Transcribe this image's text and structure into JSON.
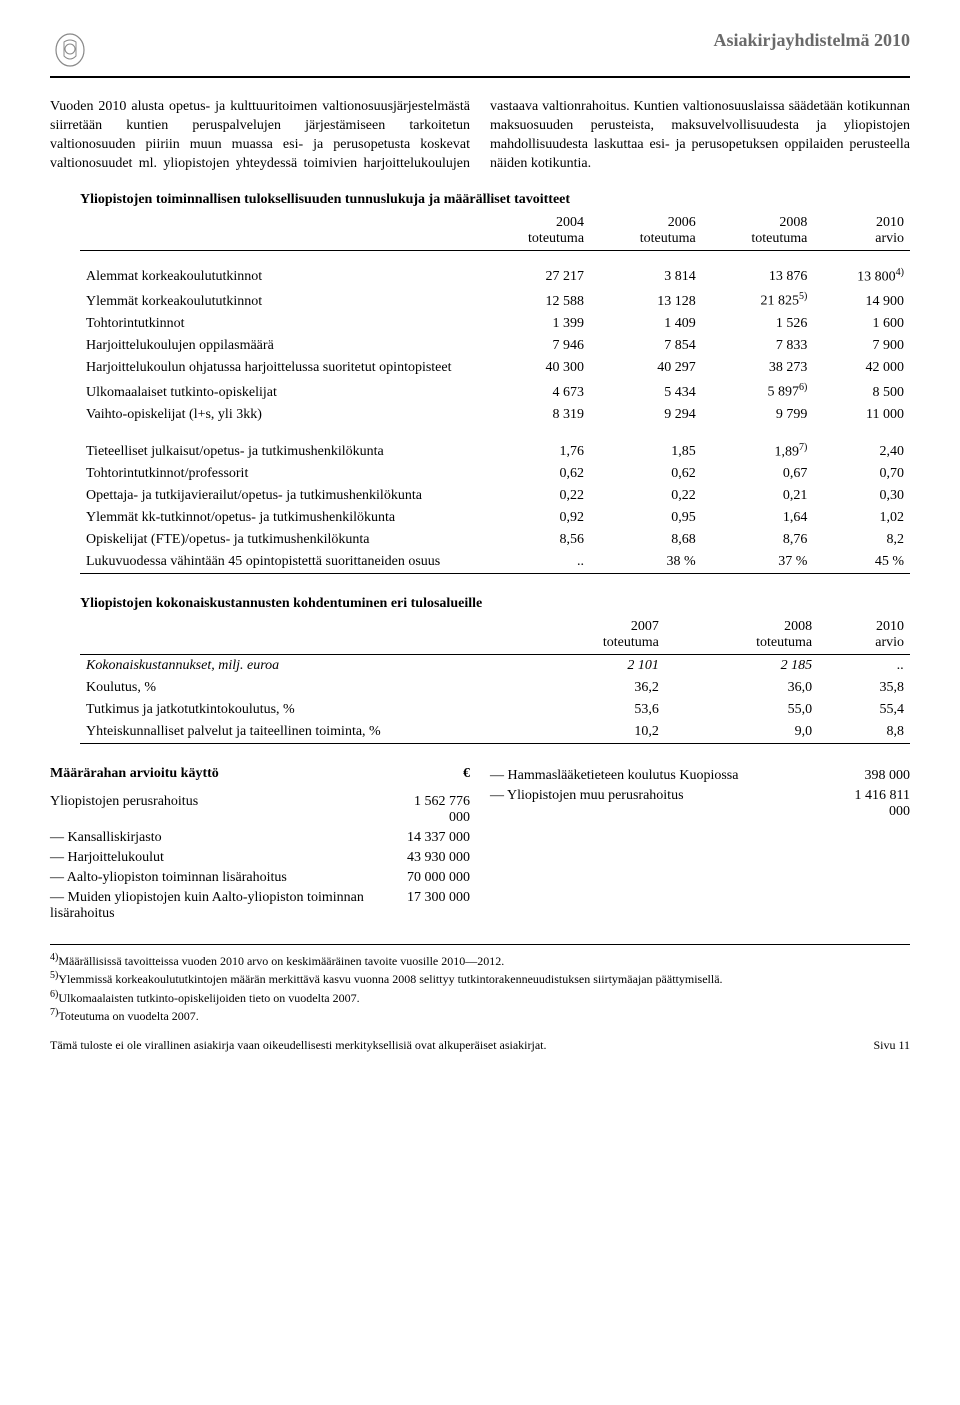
{
  "header": {
    "title": "Asiakirjayhdistelmä 2010"
  },
  "paragraph": "Vuoden 2010 alusta opetus- ja kulttuuritoimen valtionosuusjärjestelmästä siirretään kuntien peruspalvelujen järjestämiseen tarkoitetun valtionosuuden piiriin muun muassa esi- ja perusopetusta koskevat valtionosuudet ml. yliopistojen yhteydessä toimivien harjoittelukoulujen vastaava valtionrahoitus. Kuntien valtionosuuslaissa säädetään kotikunnan maksuosuuden perusteista, maksuvelvollisuudesta ja yliopistojen mahdollisuudesta laskuttaa esi- ja perusopetuksen oppilaiden perusteella näiden kotikuntia.",
  "table1": {
    "title": "Yliopistojen toiminnallisen tuloksellisuuden tunnuslukuja ja määrälliset tavoitteet",
    "headers": {
      "c1": "",
      "c2": "2004\ntoteutuma",
      "c3": "2006\ntoteutuma",
      "c4": "2008\ntoteutuma",
      "c5": "2010\narvio"
    },
    "rows_g1": [
      {
        "label": "Alemmat korkeakoulututkinnot",
        "v1": "27 217",
        "v2": "3 814",
        "v3": "13 876",
        "v4": "13 800",
        "sup4": "4)"
      },
      {
        "label": "Ylemmät korkeakoulututkinnot",
        "v1": "12 588",
        "v2": "13 128",
        "v3": "21 825",
        "sup3": "5)",
        "v4": "14 900"
      },
      {
        "label": "Tohtorintutkinnot",
        "v1": "1 399",
        "v2": "1 409",
        "v3": "1 526",
        "v4": "1 600"
      },
      {
        "label": "Harjoittelukoulujen oppilasmäärä",
        "v1": "7 946",
        "v2": "7 854",
        "v3": "7 833",
        "v4": "7 900"
      },
      {
        "label": "Harjoittelukoulun ohjatussa harjoittelussa suoritetut opintopisteet",
        "v1": "40 300",
        "v2": "40 297",
        "v3": "38 273",
        "v4": "42 000"
      },
      {
        "label": "Ulkomaalaiset tutkinto-opiskelijat",
        "v1": "4 673",
        "v2": "5 434",
        "v3": "5 897",
        "sup3": "6)",
        "v4": "8 500"
      },
      {
        "label": "Vaihto-opiskelijat (l+s, yli 3kk)",
        "v1": "8 319",
        "v2": "9 294",
        "v3": "9 799",
        "v4": "11 000"
      }
    ],
    "rows_g2": [
      {
        "label": "Tieteelliset julkaisut/opetus- ja tutkimushenkilökunta",
        "v1": "1,76",
        "v2": "1,85",
        "v3": "1,89",
        "sup3": "7)",
        "v4": "2,40"
      },
      {
        "label": "Tohtorintutkinnot/professorit",
        "v1": "0,62",
        "v2": "0,62",
        "v3": "0,67",
        "v4": "0,70"
      },
      {
        "label": "Opettaja- ja tutkijavierailut/opetus- ja tutkimushenkilökunta",
        "v1": "0,22",
        "v2": "0,22",
        "v3": "0,21",
        "v4": "0,30"
      },
      {
        "label": "Ylemmät kk-tutkinnot/opetus- ja tutkimushenkilökunta",
        "v1": "0,92",
        "v2": "0,95",
        "v3": "1,64",
        "v4": "1,02"
      },
      {
        "label": "Opiskelijat (FTE)/opetus- ja tutkimushenkilökunta",
        "v1": "8,56",
        "v2": "8,68",
        "v3": "8,76",
        "v4": "8,2"
      },
      {
        "label": "Lukuvuodessa vähintään 45 opintopistettä suorittaneiden osuus",
        "v1": "..",
        "v2": "38 %",
        "v3": "37 %",
        "v4": "45 %"
      }
    ]
  },
  "table2": {
    "title": "Yliopistojen kokonaiskustannusten kohdentuminen eri tulosalueille",
    "headers": {
      "c1": "",
      "c2": "2007\ntoteutuma",
      "c3": "2008\ntoteutuma",
      "c4": "2010\narvio"
    },
    "rows": [
      {
        "label": "Kokonaiskustannukset, milj. euroa",
        "italic": true,
        "v1": "2 101",
        "v2": "2 185",
        "v3": ".."
      },
      {
        "label": "Koulutus, %",
        "v1": "36,2",
        "v2": "36,0",
        "v3": "35,8"
      },
      {
        "label": "Tutkimus ja jatkotutkintokoulutus, %",
        "v1": "53,6",
        "v2": "55,0",
        "v3": "55,4"
      },
      {
        "label": "Yhteiskunnalliset palvelut ja taiteellinen toiminta, %",
        "v1": "10,2",
        "v2": "9,0",
        "v3": "8,8"
      }
    ]
  },
  "budget": {
    "title": "Määrärahan arvioitu käyttö",
    "euro": "€",
    "left": [
      {
        "label": "Yliopistojen perusrahoitus",
        "value": "1 562 776\n000"
      },
      {
        "label": "— Kansalliskirjasto",
        "value": "14 337 000"
      },
      {
        "label": "— Harjoittelukoulut",
        "value": "43 930 000"
      },
      {
        "label": "— Aalto-yliopiston toiminnan lisärahoitus",
        "value": "70 000 000"
      },
      {
        "label": "— Muiden yliopistojen kuin Aalto-yliopiston toiminnan lisärahoitus",
        "value": "17 300 000"
      }
    ],
    "right": [
      {
        "label": "— Hammaslääketieteen koulutus Kuopiossa",
        "value": "398 000"
      },
      {
        "label": "— Yliopistojen muu perusrahoitus",
        "value": "1 416 811\n000"
      }
    ]
  },
  "footnotes": [
    {
      "mark": "4)",
      "text": "Määrällisissä tavoitteissa vuoden 2010 arvo on keskimääräinen tavoite vuosille 2010—2012."
    },
    {
      "mark": "5)",
      "text": "Ylemmissä korkeakoulututkintojen määrän merkittävä kasvu vuonna 2008 selittyy tutkintorakenneuudistuksen siirtymäajan päättymisellä."
    },
    {
      "mark": "6)",
      "text": "Ulkomaalaisten tutkinto-opiskelijoiden tieto on vuodelta 2007."
    },
    {
      "mark": "7)",
      "text": "Toteutuma on vuodelta 2007."
    }
  ],
  "footer": {
    "left": "Tämä tuloste ei ole virallinen asiakirja vaan oikeudellisesti merkityksellisiä ovat alkuperäiset asiakirjat.",
    "right": "Sivu 11"
  }
}
